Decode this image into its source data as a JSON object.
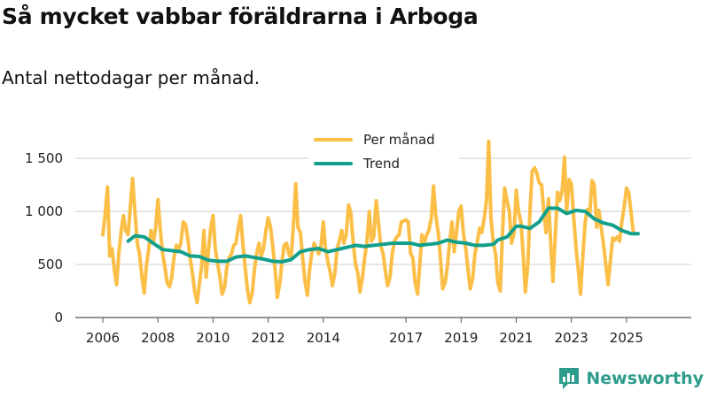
{
  "header": {
    "title": "Så mycket vabbar föräldrarna i Arboga",
    "subtitle": "Antal nettodagar per månad."
  },
  "brand": {
    "name": "Newsworthy"
  },
  "colors": {
    "monthly": "#fbbf47",
    "trend": "#12a08c",
    "grid": "#cccccc",
    "axis": "#555555"
  },
  "chart_data": {
    "type": "line",
    "title": "Så mycket vabbar föräldrarna i Arboga",
    "subtitle": "Antal nettodagar per månad.",
    "xlabel": "",
    "ylabel": "",
    "xlim": [
      2005.75,
      2025.8
    ],
    "ylim": [
      0,
      1500
    ],
    "y_ticks": [
      0,
      500,
      1000,
      1500
    ],
    "y_tick_labels": [
      "0",
      "500",
      "1 000",
      "1 500"
    ],
    "x_ticks": [
      2006,
      2008,
      2010,
      2012,
      2014,
      2017,
      2019,
      2021,
      2023,
      2025
    ],
    "x_tick_labels": [
      "2006",
      "2008",
      "2010",
      "2012",
      "2014",
      "2017",
      "2019",
      "2021",
      "2023",
      "2025"
    ],
    "grid": true,
    "legend_position": "top-center",
    "series": [
      {
        "name": "Per månad",
        "points": [
          [
            2006.0,
            780
          ],
          [
            2006.08,
            960
          ],
          [
            2006.17,
            1230
          ],
          [
            2006.25,
            580
          ],
          [
            2006.33,
            650
          ],
          [
            2006.42,
            450
          ],
          [
            2006.5,
            310
          ],
          [
            2006.58,
            600
          ],
          [
            2006.67,
            820
          ],
          [
            2006.75,
            960
          ],
          [
            2006.83,
            820
          ],
          [
            2006.92,
            780
          ],
          [
            2007.0,
            1050
          ],
          [
            2007.08,
            1310
          ],
          [
            2007.17,
            980
          ],
          [
            2007.25,
            700
          ],
          [
            2007.33,
            600
          ],
          [
            2007.42,
            380
          ],
          [
            2007.5,
            230
          ],
          [
            2007.58,
            480
          ],
          [
            2007.67,
            650
          ],
          [
            2007.75,
            820
          ],
          [
            2007.83,
            700
          ],
          [
            2007.92,
            850
          ],
          [
            2008.0,
            1110
          ],
          [
            2008.08,
            850
          ],
          [
            2008.17,
            600
          ],
          [
            2008.25,
            480
          ],
          [
            2008.33,
            330
          ],
          [
            2008.42,
            290
          ],
          [
            2008.5,
            380
          ],
          [
            2008.58,
            560
          ],
          [
            2008.67,
            680
          ],
          [
            2008.75,
            640
          ],
          [
            2008.83,
            700
          ],
          [
            2008.92,
            900
          ],
          [
            2009.0,
            880
          ],
          [
            2009.08,
            750
          ],
          [
            2009.17,
            560
          ],
          [
            2009.25,
            420
          ],
          [
            2009.33,
            250
          ],
          [
            2009.42,
            140
          ],
          [
            2009.5,
            310
          ],
          [
            2009.58,
            470
          ],
          [
            2009.67,
            820
          ],
          [
            2009.75,
            380
          ],
          [
            2009.83,
            620
          ],
          [
            2009.92,
            850
          ],
          [
            2010.0,
            960
          ],
          [
            2010.08,
            650
          ],
          [
            2010.17,
            500
          ],
          [
            2010.25,
            380
          ],
          [
            2010.33,
            220
          ],
          [
            2010.42,
            290
          ],
          [
            2010.5,
            480
          ],
          [
            2010.58,
            560
          ],
          [
            2010.67,
            600
          ],
          [
            2010.75,
            680
          ],
          [
            2010.83,
            700
          ],
          [
            2010.92,
            850
          ],
          [
            2011.0,
            960
          ],
          [
            2011.08,
            700
          ],
          [
            2011.17,
            460
          ],
          [
            2011.25,
            260
          ],
          [
            2011.33,
            140
          ],
          [
            2011.42,
            230
          ],
          [
            2011.5,
            450
          ],
          [
            2011.58,
            600
          ],
          [
            2011.67,
            700
          ],
          [
            2011.75,
            580
          ],
          [
            2011.83,
            650
          ],
          [
            2011.92,
            820
          ],
          [
            2012.0,
            940
          ],
          [
            2012.08,
            860
          ],
          [
            2012.17,
            660
          ],
          [
            2012.25,
            450
          ],
          [
            2012.33,
            190
          ],
          [
            2012.42,
            320
          ],
          [
            2012.5,
            520
          ],
          [
            2012.58,
            680
          ],
          [
            2012.67,
            700
          ],
          [
            2012.75,
            600
          ],
          [
            2012.83,
            560
          ],
          [
            2012.92,
            880
          ],
          [
            2013.0,
            1260
          ],
          [
            2013.08,
            850
          ],
          [
            2013.17,
            800
          ],
          [
            2013.25,
            560
          ],
          [
            2013.33,
            350
          ],
          [
            2013.42,
            210
          ],
          [
            2013.5,
            450
          ],
          [
            2013.58,
            600
          ],
          [
            2013.67,
            700
          ],
          [
            2013.75,
            650
          ],
          [
            2013.83,
            600
          ],
          [
            2013.92,
            680
          ],
          [
            2014.0,
            900
          ],
          [
            2014.08,
            650
          ],
          [
            2014.17,
            520
          ],
          [
            2014.25,
            430
          ],
          [
            2014.33,
            300
          ],
          [
            2014.42,
            420
          ],
          [
            2014.5,
            650
          ],
          [
            2014.58,
            720
          ],
          [
            2014.67,
            820
          ],
          [
            2014.75,
            700
          ],
          [
            2014.83,
            780
          ],
          [
            2014.92,
            1060
          ],
          [
            2015.0,
            980
          ],
          [
            2015.08,
            720
          ],
          [
            2015.17,
            500
          ],
          [
            2015.25,
            420
          ],
          [
            2015.33,
            240
          ],
          [
            2015.42,
            380
          ],
          [
            2015.5,
            560
          ],
          [
            2015.58,
            700
          ],
          [
            2015.67,
            1000
          ],
          [
            2015.75,
            720
          ],
          [
            2015.83,
            760
          ],
          [
            2015.92,
            1100
          ],
          [
            2016.0,
            900
          ],
          [
            2016.08,
            680
          ],
          [
            2016.17,
            600
          ],
          [
            2016.25,
            440
          ],
          [
            2016.33,
            300
          ],
          [
            2016.42,
            380
          ],
          [
            2016.5,
            600
          ],
          [
            2016.58,
            720
          ],
          [
            2016.67,
            760
          ],
          [
            2016.75,
            780
          ],
          [
            2016.83,
            900
          ],
          [
            2016.92,
            910
          ],
          [
            2017.0,
            920
          ],
          [
            2017.08,
            900
          ],
          [
            2017.17,
            600
          ],
          [
            2017.25,
            560
          ],
          [
            2017.33,
            330
          ],
          [
            2017.42,
            220
          ],
          [
            2017.5,
            500
          ],
          [
            2017.58,
            780
          ],
          [
            2017.67,
            700
          ],
          [
            2017.75,
            780
          ],
          [
            2017.83,
            820
          ],
          [
            2017.92,
            940
          ],
          [
            2018.0,
            1240
          ],
          [
            2018.08,
            960
          ],
          [
            2018.17,
            800
          ],
          [
            2018.25,
            560
          ],
          [
            2018.33,
            270
          ],
          [
            2018.42,
            330
          ],
          [
            2018.5,
            480
          ],
          [
            2018.58,
            700
          ],
          [
            2018.67,
            900
          ],
          [
            2018.75,
            620
          ],
          [
            2018.83,
            800
          ],
          [
            2018.92,
            1000
          ],
          [
            2019.0,
            1050
          ],
          [
            2019.08,
            800
          ],
          [
            2019.17,
            650
          ],
          [
            2019.25,
            450
          ],
          [
            2019.33,
            270
          ],
          [
            2019.42,
            370
          ],
          [
            2019.5,
            600
          ],
          [
            2019.58,
            700
          ],
          [
            2019.67,
            840
          ],
          [
            2019.75,
            800
          ],
          [
            2019.83,
            920
          ],
          [
            2019.92,
            1100
          ],
          [
            2020.0,
            1660
          ],
          [
            2020.08,
            940
          ],
          [
            2020.17,
            700
          ],
          [
            2020.25,
            600
          ],
          [
            2020.33,
            330
          ],
          [
            2020.42,
            250
          ],
          [
            2020.5,
            800
          ],
          [
            2020.58,
            1220
          ],
          [
            2020.67,
            1100
          ],
          [
            2020.75,
            1000
          ],
          [
            2020.83,
            700
          ],
          [
            2020.92,
            800
          ],
          [
            2021.0,
            1200
          ],
          [
            2021.08,
            1000
          ],
          [
            2021.17,
            900
          ],
          [
            2021.25,
            600
          ],
          [
            2021.33,
            240
          ],
          [
            2021.42,
            500
          ],
          [
            2021.5,
            1000
          ],
          [
            2021.58,
            1380
          ],
          [
            2021.67,
            1410
          ],
          [
            2021.75,
            1360
          ],
          [
            2021.83,
            1270
          ],
          [
            2021.92,
            1250
          ],
          [
            2022.0,
            1000
          ],
          [
            2022.08,
            800
          ],
          [
            2022.17,
            1120
          ],
          [
            2022.25,
            700
          ],
          [
            2022.33,
            340
          ],
          [
            2022.42,
            800
          ],
          [
            2022.5,
            1180
          ],
          [
            2022.58,
            1100
          ],
          [
            2022.67,
            1200
          ],
          [
            2022.75,
            1510
          ],
          [
            2022.83,
            1000
          ],
          [
            2022.92,
            1300
          ],
          [
            2023.0,
            1260
          ],
          [
            2023.08,
            960
          ],
          [
            2023.17,
            650
          ],
          [
            2023.25,
            450
          ],
          [
            2023.33,
            220
          ],
          [
            2023.42,
            600
          ],
          [
            2023.5,
            900
          ],
          [
            2023.58,
            1020
          ],
          [
            2023.67,
            980
          ],
          [
            2023.75,
            1290
          ],
          [
            2023.83,
            1250
          ],
          [
            2023.92,
            850
          ],
          [
            2024.0,
            1010
          ],
          [
            2024.08,
            850
          ],
          [
            2024.17,
            680
          ],
          [
            2024.25,
            500
          ],
          [
            2024.33,
            310
          ],
          [
            2024.42,
            550
          ],
          [
            2024.5,
            750
          ],
          [
            2024.58,
            730
          ],
          [
            2024.67,
            760
          ],
          [
            2024.75,
            720
          ],
          [
            2024.83,
            900
          ],
          [
            2024.92,
            1050
          ],
          [
            2025.0,
            1220
          ],
          [
            2025.08,
            1180
          ],
          [
            2025.17,
            980
          ],
          [
            2025.25,
            800
          ]
        ]
      },
      {
        "name": "Trend",
        "points": [
          [
            2006.92,
            720
          ],
          [
            2007.17,
            770
          ],
          [
            2007.5,
            760
          ],
          [
            2007.83,
            700
          ],
          [
            2008.17,
            640
          ],
          [
            2008.5,
            630
          ],
          [
            2008.83,
            620
          ],
          [
            2009.17,
            580
          ],
          [
            2009.5,
            575
          ],
          [
            2009.83,
            540
          ],
          [
            2010.17,
            530
          ],
          [
            2010.5,
            530
          ],
          [
            2010.83,
            570
          ],
          [
            2011.17,
            580
          ],
          [
            2011.5,
            565
          ],
          [
            2011.83,
            550
          ],
          [
            2012.17,
            530
          ],
          [
            2012.5,
            525
          ],
          [
            2012.83,
            545
          ],
          [
            2013.17,
            620
          ],
          [
            2013.5,
            640
          ],
          [
            2013.83,
            650
          ],
          [
            2014.17,
            620
          ],
          [
            2014.5,
            640
          ],
          [
            2014.83,
            660
          ],
          [
            2015.17,
            680
          ],
          [
            2015.5,
            670
          ],
          [
            2015.83,
            680
          ],
          [
            2016.17,
            690
          ],
          [
            2016.5,
            700
          ],
          [
            2016.83,
            700
          ],
          [
            2017.17,
            700
          ],
          [
            2017.5,
            680
          ],
          [
            2017.83,
            690
          ],
          [
            2018.17,
            700
          ],
          [
            2018.5,
            730
          ],
          [
            2018.83,
            710
          ],
          [
            2019.17,
            700
          ],
          [
            2019.5,
            680
          ],
          [
            2019.83,
            680
          ],
          [
            2020.17,
            690
          ],
          [
            2020.33,
            730
          ],
          [
            2020.67,
            760
          ],
          [
            2021.0,
            860
          ],
          [
            2021.17,
            860
          ],
          [
            2021.5,
            840
          ],
          [
            2021.83,
            900
          ],
          [
            2022.17,
            1030
          ],
          [
            2022.5,
            1030
          ],
          [
            2022.83,
            980
          ],
          [
            2023.17,
            1010
          ],
          [
            2023.5,
            1000
          ],
          [
            2023.83,
            930
          ],
          [
            2024.17,
            890
          ],
          [
            2024.5,
            870
          ],
          [
            2024.83,
            820
          ],
          [
            2025.17,
            790
          ],
          [
            2025.42,
            790
          ]
        ]
      }
    ]
  }
}
